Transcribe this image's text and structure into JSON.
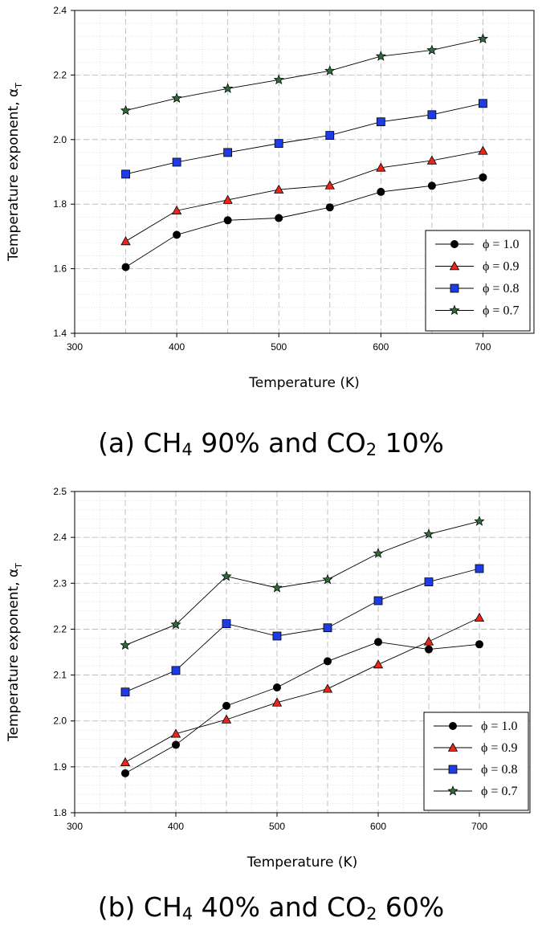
{
  "chart_data": [
    {
      "type": "line",
      "xlabel": "Temperature (K)",
      "ylabel": "Temperature exponent, α",
      "ylabel_sub": "T",
      "xlim": [
        300,
        750
      ],
      "ylim": [
        1.4,
        2.4
      ],
      "xticks": [
        300,
        400,
        500,
        600,
        700
      ],
      "yticks": [
        1.4,
        1.6,
        1.8,
        2.0,
        2.2,
        2.4
      ],
      "ytick_labels": [
        "1.4",
        "1.6",
        "1.8",
        "2.0",
        "2.2",
        "2.4"
      ],
      "grid": true,
      "legend_position": "bottom-right",
      "x": [
        350,
        400,
        450,
        500,
        550,
        600,
        650,
        700
      ],
      "series": [
        {
          "name": "ϕ = 1.0",
          "marker": "circle",
          "color": "#000000",
          "values": [
            1.605,
            1.705,
            1.75,
            1.757,
            1.79,
            1.838,
            1.857,
            1.883
          ]
        },
        {
          "name": "ϕ = 0.9",
          "marker": "triangle",
          "color": "#e8261c",
          "values": [
            1.685,
            1.78,
            1.813,
            1.845,
            1.858,
            1.913,
            1.935,
            1.965
          ]
        },
        {
          "name": "ϕ = 0.8",
          "marker": "square",
          "color": "#1e3ce6",
          "values": [
            1.893,
            1.93,
            1.96,
            1.988,
            2.013,
            2.055,
            2.077,
            2.112
          ]
        },
        {
          "name": "ϕ = 0.7",
          "marker": "star",
          "color": "#2f6b3a",
          "values": [
            2.09,
            2.128,
            2.158,
            2.185,
            2.213,
            2.258,
            2.277,
            2.312
          ]
        }
      ]
    },
    {
      "type": "line",
      "xlabel": "Temperature (K)",
      "ylabel": "Temperature exponent, α",
      "ylabel_sub": "T",
      "xlim": [
        300,
        750
      ],
      "ylim": [
        1.8,
        2.5
      ],
      "xticks": [
        300,
        400,
        500,
        600,
        700
      ],
      "yticks": [
        1.8,
        1.9,
        2.0,
        2.1,
        2.2,
        2.3,
        2.4,
        2.5
      ],
      "ytick_labels": [
        "1.8",
        "1.9",
        "2.0",
        "2.1",
        "2.2",
        "2.3",
        "2.4",
        "2.5"
      ],
      "grid": true,
      "legend_position": "bottom-right",
      "x": [
        350,
        400,
        450,
        500,
        550,
        600,
        650,
        700
      ],
      "series": [
        {
          "name": "ϕ = 1.0",
          "marker": "circle",
          "color": "#000000",
          "values": [
            1.886,
            1.948,
            2.033,
            2.073,
            2.13,
            2.172,
            2.156,
            2.167
          ]
        },
        {
          "name": "ϕ = 0.9",
          "marker": "triangle",
          "color": "#e8261c",
          "values": [
            1.91,
            1.972,
            2.003,
            2.04,
            2.07,
            2.123,
            2.173,
            2.225
          ]
        },
        {
          "name": "ϕ = 0.8",
          "marker": "square",
          "color": "#1e3ce6",
          "values": [
            2.063,
            2.11,
            2.212,
            2.185,
            2.203,
            2.262,
            2.303,
            2.332
          ]
        },
        {
          "name": "ϕ = 0.7",
          "marker": "star",
          "color": "#2f6b3a",
          "values": [
            2.165,
            2.21,
            2.315,
            2.29,
            2.308,
            2.365,
            2.407,
            2.435
          ]
        }
      ]
    }
  ],
  "captions": {
    "a": {
      "prefix": "(a) CH",
      "sub1": "4",
      "mid": " 90% and CO",
      "sub2": "2",
      "suffix": " 10%"
    },
    "b": {
      "prefix": "(b) CH",
      "sub1": "4",
      "mid": " 40% and CO",
      "sub2": "2",
      "suffix": " 60%"
    }
  }
}
